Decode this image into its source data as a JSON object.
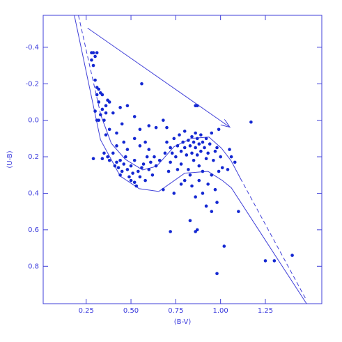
{
  "chart_data": {
    "type": "scatter",
    "xlabel": "(B-V)",
    "ylabel": "(U-B)",
    "xlim": [
      0.01,
      1.565
    ],
    "ylim": [
      -0.575,
      1.005
    ],
    "y_inverted": true,
    "xticks": [
      0.25,
      {
        "value": 0.5,
        "label": "0.50"
      },
      0.75,
      {
        "value": 1.0,
        "label": "1.00"
      },
      1.25
    ],
    "yticks": [
      -0.4,
      -0.2,
      {
        "value": 0,
        "label": "0.0"
      },
      0.2,
      0.4,
      0.6,
      0.8
    ],
    "points": {
      "color": "#1428d2",
      "x": [
        0.28,
        0.29,
        0.3,
        0.28,
        0.31,
        0.29,
        0.3,
        0.31,
        0.32,
        0.31,
        0.33,
        0.34,
        0.32,
        0.3,
        0.33,
        0.31,
        0.32,
        0.35,
        0.34,
        0.36,
        0.37,
        0.38,
        0.36,
        0.4,
        0.36,
        0.38,
        0.35,
        0.37,
        0.34,
        0.29,
        0.38,
        0.56,
        0.97,
        0.98,
        0.95,
        0.92,
        1.08,
        1.1,
        1.02,
        0.98,
        1.17,
        1.25,
        1.3,
        1.4,
        0.72,
        0.86,
        0.87,
        0.83,
        0.86,
        0.87,
        0.99,
        1.05,
        1.06,
        1.04,
        1.01,
        0.4,
        0.41,
        0.42,
        0.43,
        0.44,
        0.45,
        0.44,
        0.46,
        0.47,
        0.48,
        0.49,
        0.5,
        0.5,
        0.51,
        0.52,
        0.53,
        0.52,
        0.54,
        0.55,
        0.56,
        0.57,
        0.58,
        0.59,
        0.6,
        0.61,
        0.62,
        0.46,
        0.48,
        0.42,
        0.52,
        0.55,
        0.58,
        0.6,
        0.63,
        0.64,
        0.66,
        0.68,
        0.44,
        0.48,
        0.52,
        0.55,
        0.6,
        0.64,
        0.68,
        0.7,
        0.45,
        0.42,
        0.7,
        0.72,
        0.73,
        0.74,
        0.75,
        0.76,
        0.77,
        0.78,
        0.78,
        0.79,
        0.8,
        0.8,
        0.81,
        0.82,
        0.82,
        0.83,
        0.84,
        0.84,
        0.85,
        0.85,
        0.86,
        0.86,
        0.87,
        0.87,
        0.88,
        0.88,
        0.89,
        0.89,
        0.9,
        0.9,
        0.91,
        0.92,
        0.92,
        0.93,
        0.94,
        0.95,
        0.96,
        0.97,
        0.76,
        0.72,
        0.8,
        0.84,
        0.88,
        0.74,
        0.78,
        0.86,
        0.9,
        0.93,
        0.83,
        0.69,
        0.71,
        0.98,
        0.99,
        1.0,
        0.95
      ],
      "y": [
        -0.37,
        -0.37,
        -0.35,
        -0.33,
        -0.37,
        -0.3,
        -0.22,
        -0.18,
        -0.17,
        -0.14,
        -0.15,
        -0.14,
        -0.1,
        -0.05,
        -0.03,
        0,
        0,
        0,
        -0.06,
        -0.08,
        -0.11,
        -0.1,
        -0.04,
        -0.04,
        0.08,
        0.05,
        0.18,
        0.2,
        0.21,
        0.21,
        0.22,
        -0.2,
        0.38,
        0.45,
        0.5,
        0.47,
        0.23,
        0.5,
        0.69,
        0.84,
        0.01,
        0.77,
        0.77,
        0.74,
        0.61,
        0.61,
        0.6,
        0.55,
        -0.08,
        -0.08,
        0.05,
        0.16,
        0.2,
        0.27,
        0.26,
        0.18,
        0.25,
        0.23,
        0.26,
        0.22,
        0.28,
        0.3,
        0.24,
        0.2,
        0.27,
        0.31,
        0.33,
        0.25,
        0.29,
        0.34,
        0.36,
        0.22,
        0.28,
        0.31,
        0.26,
        0.24,
        0.33,
        0.2,
        0.27,
        0.23,
        0.3,
        0.12,
        0.16,
        0.14,
        0.1,
        0.14,
        0.12,
        0.16,
        0.2,
        0.25,
        0.22,
        0.38,
        -0.07,
        -0.08,
        -0.02,
        0.05,
        0.03,
        0.04,
        0.0,
        0.04,
        0.02,
        0.07,
        0.12,
        0.15,
        0.18,
        0.1,
        0.2,
        0.14,
        0.08,
        0.17,
        0.24,
        0.12,
        0.15,
        0.06,
        0.19,
        0.11,
        0.27,
        0.14,
        0.09,
        0.18,
        0.12,
        0.22,
        0.07,
        0.15,
        0.1,
        0.19,
        0.13,
        0.25,
        0.08,
        0.17,
        0.12,
        0.28,
        0.15,
        0.1,
        0.21,
        0.18,
        0.13,
        0.3,
        0.22,
        0.17,
        0.27,
        0.23,
        0.33,
        0.36,
        0.33,
        0.4,
        0.35,
        0.42,
        0.4,
        0.35,
        0.3,
        0.18,
        0.28,
        0.15,
        0.28,
        0.2,
        0.07
      ]
    },
    "lines": [
      {
        "color": "#3f3fd8",
        "dash": false,
        "x": [
          0.184,
          0.33,
          0.44,
          0.546,
          0.655,
          0.8,
          0.93,
          1.01,
          1.06,
          1.48
        ],
        "y": [
          -0.574,
          0.107,
          0.306,
          0.375,
          0.39,
          0.29,
          0.28,
          0.33,
          0.37,
          1.005
        ]
      },
      {
        "color": "#3f3fd8",
        "dash": true,
        "x": [
          0.207,
          0.266,
          0.332
        ],
        "y": [
          -0.574,
          -0.314,
          -0.027
        ]
      },
      {
        "color": "#3f3fd8",
        "dash": false,
        "x": [
          0.332,
          0.39,
          0.468,
          0.565,
          0.643,
          0.74,
          0.838,
          0.935,
          1.005,
          1.059,
          1.11
        ],
        "y": [
          -0.027,
          0.126,
          0.214,
          0.272,
          0.252,
          0.145,
          0.099,
          0.092,
          0.153,
          0.222,
          0.317
        ]
      },
      {
        "color": "#3f3fd8",
        "dash": true,
        "x": [
          1.11,
          1.48
        ],
        "y": [
          0.317,
          0.987
        ]
      }
    ],
    "arrow": {
      "color": "#3f3fd8",
      "x": [
        0.258,
        1.052
      ],
      "y": [
        -0.505,
        0.038
      ]
    }
  }
}
